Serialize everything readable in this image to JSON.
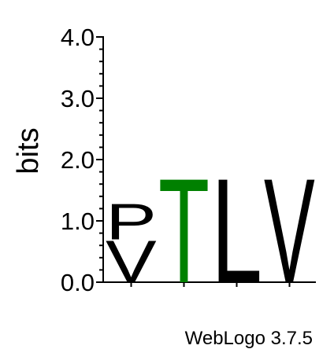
{
  "chart_data": {
    "type": "sequence-logo",
    "ylabel": "bits",
    "ylim": [
      0,
      4.0
    ],
    "y_major_ticks": [
      {
        "value": 0.0,
        "label": "0.0"
      },
      {
        "value": 1.0,
        "label": "1.0"
      },
      {
        "value": 2.0,
        "label": "2.0"
      },
      {
        "value": 3.0,
        "label": "3.0"
      },
      {
        "value": 4.0,
        "label": "4.0"
      }
    ],
    "y_minor_step": 0.2,
    "positions": [
      {
        "stack": [
          {
            "letter": "V",
            "height": 0.7,
            "color": "#000000"
          },
          {
            "letter": "P",
            "height": 0.6,
            "color": "#000000"
          }
        ]
      },
      {
        "stack": [
          {
            "letter": "T",
            "height": 1.75,
            "color": "#008000"
          }
        ]
      },
      {
        "stack": [
          {
            "letter": "L",
            "height": 1.75,
            "color": "#000000"
          }
        ]
      },
      {
        "stack": [
          {
            "letter": "V",
            "height": 1.75,
            "color": "#000000"
          }
        ]
      }
    ],
    "credit": "WebLogo 3.7.5"
  }
}
